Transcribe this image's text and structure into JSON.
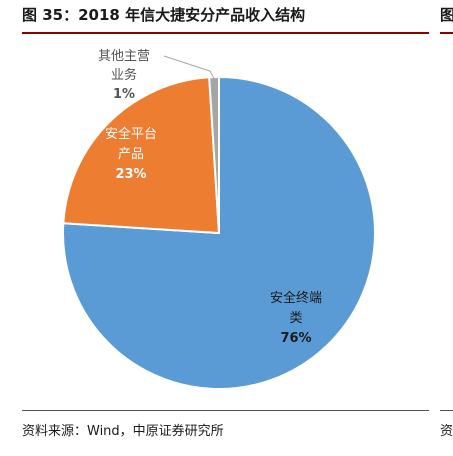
{
  "header": {
    "title": "图 35：2018 年信大捷安分产品收入结构",
    "right_fragment": "图"
  },
  "footer": {
    "source": "资料来源：Wind，中原证券研究所",
    "right_fragment": "资"
  },
  "chart_data": {
    "type": "pie",
    "title": "",
    "start_angle_deg": 0,
    "direction": "clockwise",
    "slices": [
      {
        "name": "安全终端类",
        "label_lines": [
          "安全终端",
          "类"
        ],
        "value": 76,
        "pct_label": "76%",
        "color": "#5b9bd5",
        "label_color": "#1a1a1a"
      },
      {
        "name": "安全平台产品",
        "label_lines": [
          "安全平台",
          "产品"
        ],
        "value": 23,
        "pct_label": "23%",
        "color": "#ed7d31",
        "label_color": "#ffffff"
      },
      {
        "name": "其他主营业务",
        "label_lines": [
          "其他主营",
          "业务"
        ],
        "value": 1,
        "pct_label": "1%",
        "color": "#a5a5a5",
        "label_color": "#555555"
      }
    ]
  }
}
